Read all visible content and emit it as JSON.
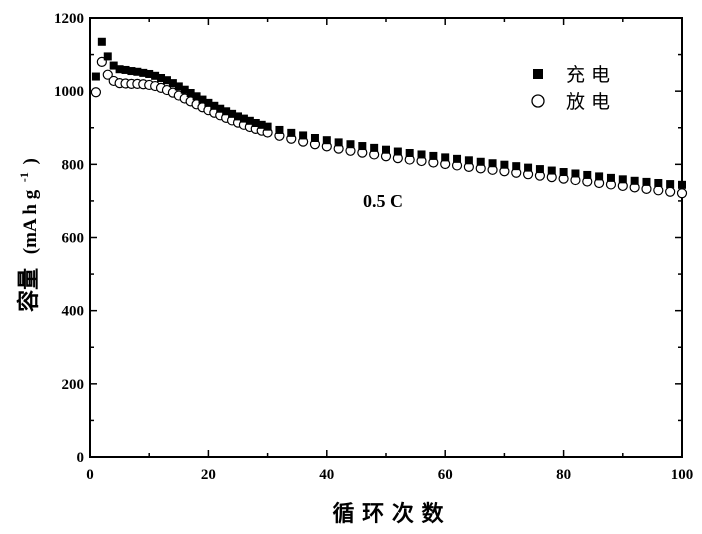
{
  "chart_data": {
    "type": "scatter",
    "xlabel": "循 环 次 数",
    "ylabel_main": "容量",
    "ylabel_unit": "(mA h g",
    "ylabel_sup": "-1",
    "ylabel_close": ")",
    "xlim": [
      0,
      100
    ],
    "ylim": [
      0,
      1200
    ],
    "xticks": [
      0,
      20,
      40,
      60,
      80,
      100
    ],
    "yticks": [
      0,
      200,
      400,
      600,
      800,
      1000,
      1200
    ],
    "annotation": "0.5 C",
    "legend_position": "top-right",
    "series": [
      {
        "name": "充 电",
        "marker": "filled-square",
        "color": "#000000",
        "points": [
          [
            1,
            1040
          ],
          [
            2,
            1135
          ],
          [
            3,
            1095
          ],
          [
            4,
            1070
          ],
          [
            5,
            1060
          ],
          [
            6,
            1058
          ],
          [
            7,
            1055
          ],
          [
            8,
            1053
          ],
          [
            9,
            1050
          ],
          [
            10,
            1047
          ],
          [
            11,
            1042
          ],
          [
            12,
            1036
          ],
          [
            13,
            1030
          ],
          [
            14,
            1022
          ],
          [
            15,
            1013
          ],
          [
            16,
            1004
          ],
          [
            17,
            995
          ],
          [
            18,
            986
          ],
          [
            19,
            977
          ],
          [
            20,
            968
          ],
          [
            21,
            960
          ],
          [
            22,
            952
          ],
          [
            23,
            945
          ],
          [
            24,
            938
          ],
          [
            25,
            931
          ],
          [
            26,
            925
          ],
          [
            27,
            919
          ],
          [
            28,
            913
          ],
          [
            29,
            908
          ],
          [
            30,
            903
          ],
          [
            32,
            894
          ],
          [
            34,
            886
          ],
          [
            36,
            879
          ],
          [
            38,
            872
          ],
          [
            40,
            866
          ],
          [
            42,
            860
          ],
          [
            44,
            855
          ],
          [
            46,
            850
          ],
          [
            48,
            845
          ],
          [
            50,
            840
          ],
          [
            52,
            835
          ],
          [
            54,
            831
          ],
          [
            56,
            827
          ],
          [
            58,
            823
          ],
          [
            60,
            819
          ],
          [
            62,
            815
          ],
          [
            64,
            811
          ],
          [
            66,
            807
          ],
          [
            68,
            803
          ],
          [
            70,
            799
          ],
          [
            72,
            795
          ],
          [
            74,
            791
          ],
          [
            76,
            787
          ],
          [
            78,
            783
          ],
          [
            80,
            779
          ],
          [
            82,
            775
          ],
          [
            84,
            771
          ],
          [
            86,
            767
          ],
          [
            88,
            763
          ],
          [
            90,
            759
          ],
          [
            92,
            755
          ],
          [
            94,
            752
          ],
          [
            96,
            749
          ],
          [
            98,
            746
          ],
          [
            100,
            744
          ]
        ]
      },
      {
        "name": "放 电",
        "marker": "open-circle",
        "color": "#000000",
        "points": [
          [
            1,
            997
          ],
          [
            2,
            1080
          ],
          [
            3,
            1045
          ],
          [
            4,
            1028
          ],
          [
            5,
            1022
          ],
          [
            6,
            1021
          ],
          [
            7,
            1020
          ],
          [
            8,
            1020
          ],
          [
            9,
            1019
          ],
          [
            10,
            1017
          ],
          [
            11,
            1014
          ],
          [
            12,
            1009
          ],
          [
            13,
            1003
          ],
          [
            14,
            996
          ],
          [
            15,
            988
          ],
          [
            16,
            980
          ],
          [
            17,
            972
          ],
          [
            18,
            964
          ],
          [
            19,
            956
          ],
          [
            20,
            948
          ],
          [
            21,
            941
          ],
          [
            22,
            934
          ],
          [
            23,
            927
          ],
          [
            24,
            920
          ],
          [
            25,
            914
          ],
          [
            26,
            908
          ],
          [
            27,
            902
          ],
          [
            28,
            897
          ],
          [
            29,
            892
          ],
          [
            30,
            887
          ],
          [
            32,
            878
          ],
          [
            34,
            870
          ],
          [
            36,
            862
          ],
          [
            38,
            855
          ],
          [
            40,
            849
          ],
          [
            42,
            843
          ],
          [
            44,
            837
          ],
          [
            46,
            832
          ],
          [
            48,
            827
          ],
          [
            50,
            822
          ],
          [
            52,
            817
          ],
          [
            54,
            813
          ],
          [
            56,
            809
          ],
          [
            58,
            805
          ],
          [
            60,
            801
          ],
          [
            62,
            797
          ],
          [
            64,
            793
          ],
          [
            66,
            789
          ],
          [
            68,
            785
          ],
          [
            70,
            781
          ],
          [
            72,
            777
          ],
          [
            74,
            773
          ],
          [
            76,
            769
          ],
          [
            78,
            765
          ],
          [
            80,
            761
          ],
          [
            82,
            757
          ],
          [
            84,
            753
          ],
          [
            86,
            749
          ],
          [
            88,
            745
          ],
          [
            90,
            741
          ],
          [
            92,
            737
          ],
          [
            94,
            733
          ],
          [
            96,
            729
          ],
          [
            98,
            725
          ],
          [
            100,
            721
          ]
        ]
      }
    ]
  }
}
